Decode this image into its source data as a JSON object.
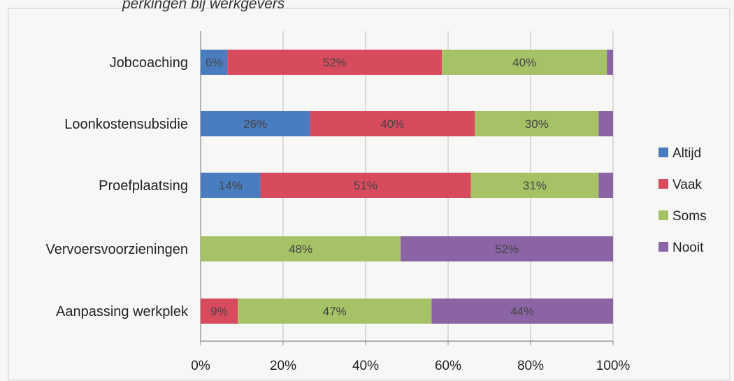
{
  "chart_data": {
    "type": "bar",
    "orientation": "horizontal",
    "stacked": "percent",
    "title": "perkingen bij werkgevers",
    "xlabel": "",
    "ylabel": "",
    "xlim": [
      0,
      100
    ],
    "x_ticks": [
      "0%",
      "20%",
      "40%",
      "60%",
      "80%",
      "100%"
    ],
    "grid": "vertical",
    "legend": "right",
    "categories": [
      "Jobcoaching",
      "Loonkostensubsidie",
      "Proefplaatsing",
      "Vervoersvoorzieningen",
      "Aanpassing werkplek"
    ],
    "series": [
      {
        "name": "Altijd",
        "color": "#4a7dbf",
        "values": [
          6.5,
          26.5,
          14.5,
          0,
          0
        ],
        "labels": [
          "6%",
          "26%",
          "14%",
          "",
          ""
        ]
      },
      {
        "name": "Vaak",
        "color": "#d84a5e",
        "values": [
          52,
          40,
          51,
          0,
          9
        ],
        "labels": [
          "52%",
          "40%",
          "51%",
          "",
          "9%"
        ]
      },
      {
        "name": "Soms",
        "color": "#a6c266",
        "values": [
          40,
          30,
          31,
          48.5,
          47
        ],
        "labels": [
          "40%",
          "30%",
          "31%",
          "48%",
          "47%"
        ]
      },
      {
        "name": "Nooit",
        "color": "#8a64a4",
        "values": [
          1.5,
          3.5,
          3.5,
          51.5,
          44
        ],
        "labels": [
          "",
          "",
          "",
          "52%",
          "44%"
        ]
      }
    ]
  }
}
